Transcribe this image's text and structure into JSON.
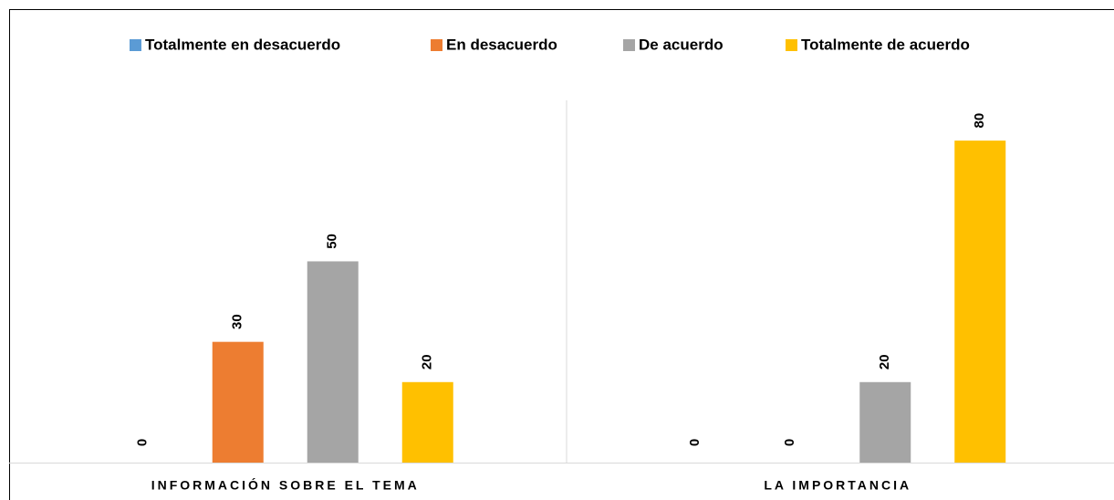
{
  "chart_data": {
    "type": "bar",
    "categories": [
      "INFORMACIÓN SOBRE EL TEMA",
      "LA IMPORTANCIA"
    ],
    "series": [
      {
        "name": "Totalmente en desacuerdo",
        "color": "#5b9bd5",
        "values": [
          0,
          0
        ]
      },
      {
        "name": "En desacuerdo",
        "color": "#ed7d31",
        "values": [
          30,
          0
        ]
      },
      {
        "name": "De acuerdo",
        "color": "#a5a5a5",
        "values": [
          50,
          20
        ]
      },
      {
        "name": "Totalmente de acuerdo",
        "color": "#ffc000",
        "values": [
          20,
          80
        ]
      }
    ],
    "ylim": [
      0,
      90
    ],
    "legend": "top"
  }
}
